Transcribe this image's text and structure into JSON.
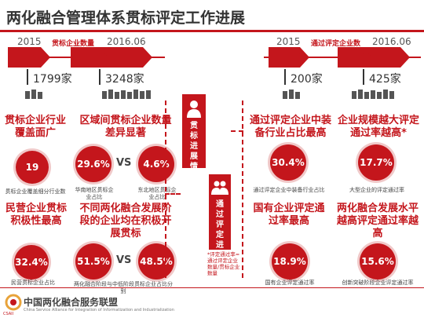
{
  "title": "两化融合管理体系贯标评定工作进展",
  "left": {
    "year_start": "2015",
    "year_end": "2016.06",
    "bar_label": "贯标企业数量",
    "count_start": "1799家",
    "count_end": "3248家",
    "section_label": "贯标进展情况",
    "blocks": [
      {
        "heading": "贯标企业行业覆盖面广",
        "values": [
          "19"
        ],
        "captions": [
          "贯标企业覆盖细分行业数"
        ]
      },
      {
        "heading": "区域间贯标企业数量差异显著",
        "values": [
          "29.6%",
          "4.6%"
        ],
        "captions": [
          "华南地区贯标企业占比",
          "东北地区贯标企业占比"
        ],
        "vs": "VS"
      },
      {
        "heading": "民营企业贯标积极性最高",
        "values": [
          "32.4%"
        ],
        "captions": [
          "民营贯标企业占比"
        ]
      },
      {
        "heading": "不同两化融合发展阶段的企业均在积极开展贯标",
        "values": [
          "51.5%",
          "48.5%"
        ],
        "captions": [
          "两化融合阶段与中低阶段贯标企业占比分别"
        ],
        "vs": "VS"
      }
    ]
  },
  "right": {
    "year_start": "2015",
    "year_end": "2016.06",
    "bar_label": "通过评定企业数",
    "count_start": "200家",
    "count_end": "425家",
    "section_label": "通过评定进展情况",
    "note": "*评定通过率=通过评定企业数量/贯标企业数量",
    "blocks": [
      {
        "heading": "通过评定企业中装备行业占比最高",
        "values": [
          "30.4%"
        ],
        "captions": [
          "通过评定企业中装备行业占比"
        ]
      },
      {
        "heading": "企业规模越大评定通过率越高*",
        "values": [
          "17.7%"
        ],
        "captions": [
          "大型企业的评定通过率"
        ]
      },
      {
        "heading": "国有企业评定通过率最高",
        "values": [
          "18.9%"
        ],
        "captions": [
          "国有企业评定通过率"
        ]
      },
      {
        "heading": "两化融合发展水平越高评定通过率越高",
        "values": [
          "15.6%"
        ],
        "captions": [
          "创新突破阶段企业评定通过率"
        ]
      }
    ]
  },
  "footer": {
    "logo_cn": "中国两化融合服务联盟",
    "logo_en": "China Service Alliance for Integration of Informatization and Industrialization",
    "logo_badge": "CSAII",
    "accent": "#c4161c"
  }
}
